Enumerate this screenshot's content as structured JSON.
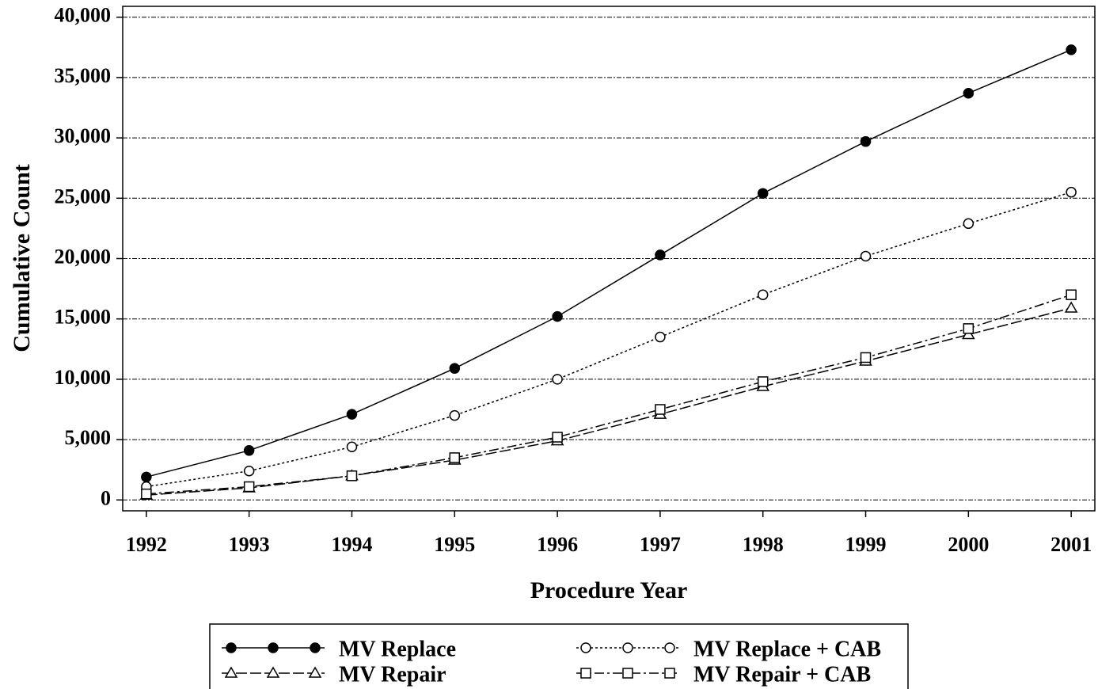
{
  "chart_data": {
    "type": "line",
    "x_label": "Procedure Year",
    "y_label": "Cumulative Count",
    "x": [
      1992,
      1993,
      1994,
      1995,
      1996,
      1997,
      1998,
      1999,
      2000,
      2001
    ],
    "xlim": [
      1991.77,
      2001.23
    ],
    "xticks": [
      1992,
      1993,
      1994,
      1995,
      1996,
      1997,
      1998,
      1999,
      2000,
      2001
    ],
    "ylim": [
      -900,
      40900
    ],
    "yticks": [
      0,
      {
        "value": 5000,
        "label": "5,000"
      },
      {
        "value": 10000,
        "label": "10,000"
      },
      {
        "value": 15000,
        "label": "15,000"
      },
      {
        "value": 20000,
        "label": "20,000"
      },
      {
        "value": 25000,
        "label": "25,000"
      },
      {
        "value": 30000,
        "label": "30,000"
      },
      {
        "value": 35000,
        "label": "35,000"
      },
      {
        "value": 40000,
        "label": "40,000"
      }
    ],
    "grid": true,
    "legend": "bottom",
    "series": [
      {
        "name": "MV Replace",
        "color": "#000000",
        "marker": "filled-circle",
        "dash": "solid",
        "values": [
          1900,
          4100,
          7100,
          10900,
          15200,
          20300,
          25400,
          29700,
          33700,
          37300
        ]
      },
      {
        "name": "MV Replace + CAB",
        "color": "#000000",
        "marker": "circle",
        "dash": "dotted",
        "values": [
          1100,
          2400,
          4400,
          7000,
          10000,
          13500,
          17000,
          20200,
          22900,
          25500
        ]
      },
      {
        "name": "MV Repair",
        "color": "#000000",
        "marker": "triangle",
        "dash": "long-dash",
        "values": [
          400,
          1000,
          2000,
          3300,
          4900,
          7100,
          9400,
          11500,
          13700,
          15900
        ]
      },
      {
        "name": "MV Repair + CAB",
        "color": "#000000",
        "marker": "square",
        "dash": "dash-dot",
        "values": [
          500,
          1100,
          2000,
          3500,
          5200,
          7500,
          9800,
          11800,
          14200,
          17000
        ]
      }
    ]
  }
}
